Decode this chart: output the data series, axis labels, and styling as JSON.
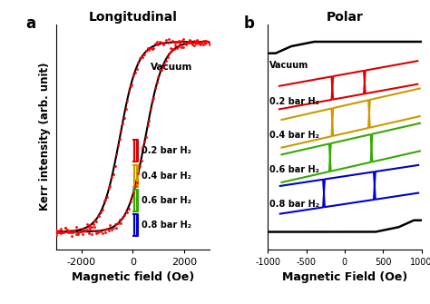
{
  "panel_a_title": "Longitudinal",
  "panel_b_title": "Polar",
  "panel_a_label": "a",
  "panel_b_label": "b",
  "ylabel": "Kerr intensity (arb. unit)",
  "xlabel_a": "Magnetic field (Oe)",
  "xlabel_b": "Magnetic Field (Oe)",
  "xlim_a": [
    -3000,
    3000
  ],
  "xlim_b": [
    -1000,
    1000
  ],
  "xticks_a": [
    -2000,
    0,
    2000
  ],
  "xticks_b": [
    -1000,
    -500,
    0,
    500,
    1000
  ],
  "colors_vacuum": "#000000",
  "colors_bar02": "#dd0000",
  "colors_bar04": "#cc9900",
  "colors_bar06": "#33aa00",
  "colors_bar08": "#0000cc",
  "label_vacuum": "Vacuum",
  "label_bar02": "0.2 bar H₂",
  "label_bar04": "0.4 bar H₂",
  "label_bar06": "0.6 bar H₂",
  "label_bar08": "0.8 bar H₂",
  "figsize": [
    4.74,
    3.35
  ],
  "dpi": 100
}
